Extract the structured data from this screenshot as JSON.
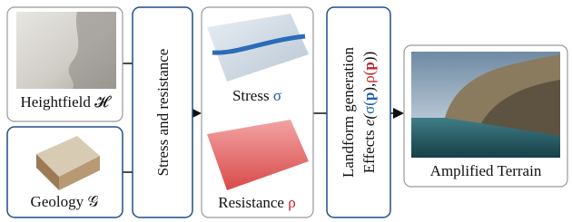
{
  "inputs": [
    {
      "label": "Heightfield 𝓗"
    },
    {
      "label": "Geology 𝒢"
    }
  ],
  "stress_step": {
    "label": "Stress and resistance"
  },
  "fields": [
    {
      "name": "Stress",
      "symbol": "σ"
    },
    {
      "name": "Resistance",
      "symbol": "ρ"
    }
  ],
  "landform_step": {
    "label": "Landform generation",
    "effects_label": "Effects",
    "effects_formula": [
      "e(",
      "σ(",
      "p",
      "),",
      "ρ(",
      "p",
      "))"
    ]
  },
  "output": {
    "label": "Amplified Terrain"
  }
}
